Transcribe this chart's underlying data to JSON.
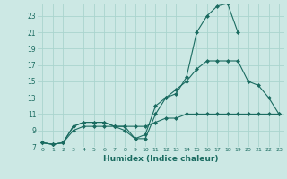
{
  "title": "",
  "xlabel": "Humidex (Indice chaleur)",
  "ylabel": "",
  "bg_color": "#cce8e4",
  "grid_color": "#aad4ce",
  "line_color": "#1a6b60",
  "xlim": [
    -0.5,
    23.5
  ],
  "ylim": [
    7,
    24.5
  ],
  "xticks": [
    0,
    1,
    2,
    3,
    4,
    5,
    6,
    7,
    8,
    9,
    10,
    11,
    12,
    13,
    14,
    15,
    16,
    17,
    18,
    19,
    20,
    21,
    22,
    23
  ],
  "yticks": [
    7,
    9,
    11,
    13,
    15,
    17,
    19,
    21,
    23
  ],
  "series": [
    {
      "x": [
        0,
        1,
        2,
        3,
        4,
        5,
        6,
        7,
        8,
        9,
        10,
        11,
        12,
        13,
        14,
        15,
        16,
        17,
        18,
        19
      ],
      "y": [
        7.5,
        7.3,
        7.5,
        9.5,
        10,
        10,
        10,
        9.5,
        9.5,
        8,
        8.5,
        12,
        13,
        13.5,
        15.5,
        21,
        23,
        24.2,
        24.5,
        21
      ]
    },
    {
      "x": [
        0,
        1,
        2,
        3,
        4,
        5,
        6,
        7,
        8,
        9,
        10,
        11,
        12,
        13,
        14,
        15,
        16,
        17,
        18,
        19,
        20,
        21,
        22,
        23
      ],
      "y": [
        7.5,
        7.3,
        7.5,
        9.5,
        10,
        10,
        10,
        9.5,
        9,
        8,
        8,
        11,
        13,
        14,
        15,
        16.5,
        17.5,
        17.5,
        17.5,
        17.5,
        15,
        14.5,
        13,
        11
      ]
    },
    {
      "x": [
        0,
        1,
        2,
        3,
        4,
        5,
        6,
        7,
        8,
        9,
        10,
        11,
        12,
        13,
        14,
        15,
        16,
        17,
        18,
        19,
        20,
        21,
        22,
        23
      ],
      "y": [
        7.5,
        7.3,
        7.5,
        9,
        9.5,
        9.5,
        9.5,
        9.5,
        9.5,
        9.5,
        9.5,
        10,
        10.5,
        10.5,
        11,
        11,
        11,
        11,
        11,
        11,
        11,
        11,
        11,
        11
      ]
    }
  ]
}
